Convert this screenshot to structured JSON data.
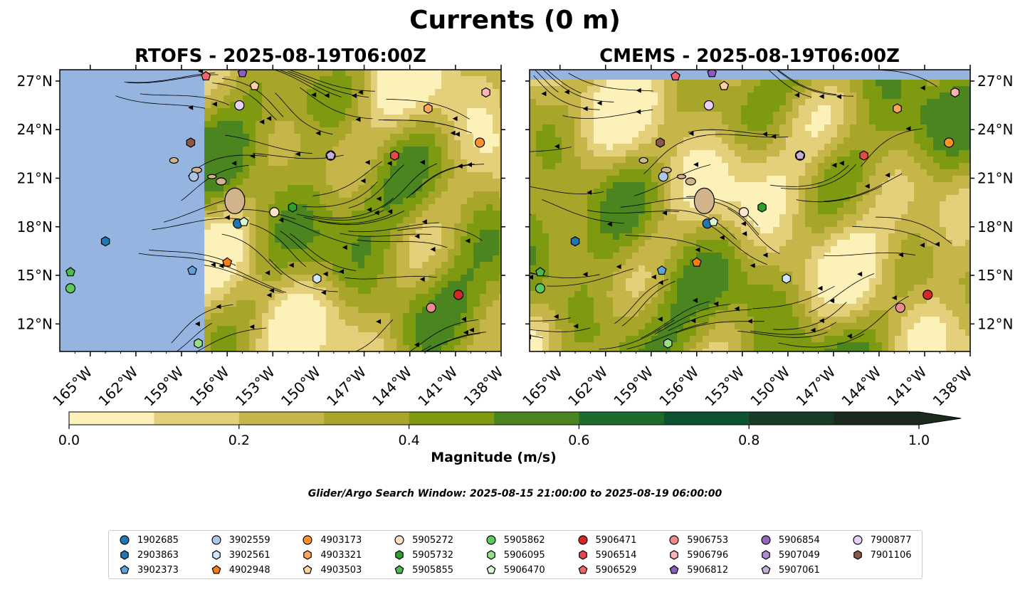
{
  "title": "Currents (0 m)",
  "panels": [
    {
      "id": "rtofs",
      "title": "RTOFS - 2025-08-19T06:00Z"
    },
    {
      "id": "cmems",
      "title": "CMEMS - 2025-08-19T06:00Z"
    }
  ],
  "lat_ticks": [
    "27°N",
    "24°N",
    "21°N",
    "18°N",
    "15°N",
    "12°N"
  ],
  "lon_ticks": [
    "165°W",
    "162°W",
    "159°W",
    "156°W",
    "153°W",
    "150°W",
    "147°W",
    "144°W",
    "141°W",
    "138°W"
  ],
  "colorbar": {
    "label": "Magnitude (m/s)",
    "ticks": [
      "0.0",
      "0.2",
      "0.4",
      "0.6",
      "0.8",
      "1.0"
    ],
    "colors": [
      "#fbf1b9",
      "#e4d07a",
      "#c6b64a",
      "#a8a62a",
      "#7e9a10",
      "#4a8520",
      "#1f6b2e",
      "#0e5430",
      "#173b26",
      "#1b2a1e"
    ]
  },
  "search_window": "Glider/Argo Search Window: 2025-08-15 21:00:00 to 2025-08-19 06:00:00",
  "colors": {
    "ocean": "#96b4e0",
    "land": "#d2b48c"
  },
  "chart_data": {
    "type": "map",
    "title": "Currents (0 m)",
    "lon_range": [
      -167,
      -138
    ],
    "lat_range": [
      10.3,
      27.7
    ],
    "rtofs_domain_lon": [
      -157.5,
      -138
    ],
    "floats": [
      {
        "id": "1902685",
        "color": "#1f77b4",
        "marker": "circle",
        "lon": -155.3,
        "lat": 18.2
      },
      {
        "id": "2903863",
        "color": "#1f77b4",
        "marker": "hexagon",
        "lon": -164.0,
        "lat": 17.1
      },
      {
        "id": "3902373",
        "color": "#5fa2d8",
        "marker": "pentagon",
        "lon": -158.3,
        "lat": 15.3
      },
      {
        "id": "3902559",
        "color": "#aec7e8",
        "marker": "circle",
        "lon": -158.2,
        "lat": 21.1
      },
      {
        "id": "3902561",
        "color": "#cfe6fb",
        "marker": "hexagon",
        "lon": -150.1,
        "lat": 14.8
      },
      {
        "id": "4902948",
        "color": "#ff7f0e",
        "marker": "pentagon",
        "lon": -156.0,
        "lat": 15.8
      },
      {
        "id": "4903173",
        "color": "#ff922b",
        "marker": "circle",
        "lon": -139.4,
        "lat": 23.2
      },
      {
        "id": "4903321",
        "color": "#ffa65a",
        "marker": "hexagon",
        "lon": -142.8,
        "lat": 25.3
      },
      {
        "id": "4903503",
        "color": "#ffd0a0",
        "marker": "pentagon",
        "lon": -154.2,
        "lat": 26.7
      },
      {
        "id": "5905272",
        "color": "#ffe3c9",
        "marker": "circle",
        "lon": -152.9,
        "lat": 18.9
      },
      {
        "id": "5905732",
        "color": "#2ca02c",
        "marker": "hexagon",
        "lon": -151.7,
        "lat": 19.2
      },
      {
        "id": "5905855",
        "color": "#4fb84f",
        "marker": "pentagon",
        "lon": -166.3,
        "lat": 15.2
      },
      {
        "id": "5905862",
        "color": "#5ec95e",
        "marker": "circle",
        "lon": -166.3,
        "lat": 14.2
      },
      {
        "id": "5906095",
        "color": "#98df8a",
        "marker": "hexagon",
        "lon": -157.9,
        "lat": 10.8
      },
      {
        "id": "5906470",
        "color": "#d7f7cf",
        "marker": "pentagon",
        "lon": -154.9,
        "lat": 18.3
      },
      {
        "id": "5906471",
        "color": "#d62728",
        "marker": "circle",
        "lon": -140.8,
        "lat": 13.8
      },
      {
        "id": "5906514",
        "color": "#e5484d",
        "marker": "hexagon",
        "lon": -145.0,
        "lat": 22.4
      },
      {
        "id": "5906529",
        "color": "#f2656a",
        "marker": "pentagon",
        "lon": -157.4,
        "lat": 27.3
      },
      {
        "id": "5906753",
        "color": "#f08b8b",
        "marker": "circle",
        "lon": -142.6,
        "lat": 13.0
      },
      {
        "id": "5906796",
        "color": "#ffb3b3",
        "marker": "hexagon",
        "lon": -139.0,
        "lat": 26.3
      },
      {
        "id": "5906812",
        "color": "#8c5cbf",
        "marker": "pentagon",
        "lon": -155.0,
        "lat": 27.5
      },
      {
        "id": "5906854",
        "color": "#9467bd",
        "marker": "circle",
        "lon": -149.2,
        "lat": 22.4
      },
      {
        "id": "5907049",
        "color": "#b08bd6",
        "marker": "hexagon",
        "lon": -149.2,
        "lat": 22.4
      },
      {
        "id": "5907061",
        "color": "#c5b0d5",
        "marker": "pentagon",
        "lon": -149.2,
        "lat": 22.4
      },
      {
        "id": "7900877",
        "color": "#e8d0fb",
        "marker": "circle",
        "lon": -155.2,
        "lat": 25.5
      },
      {
        "id": "7901106",
        "color": "#8c564b",
        "marker": "hexagon",
        "lon": -158.4,
        "lat": 23.2
      }
    ]
  }
}
